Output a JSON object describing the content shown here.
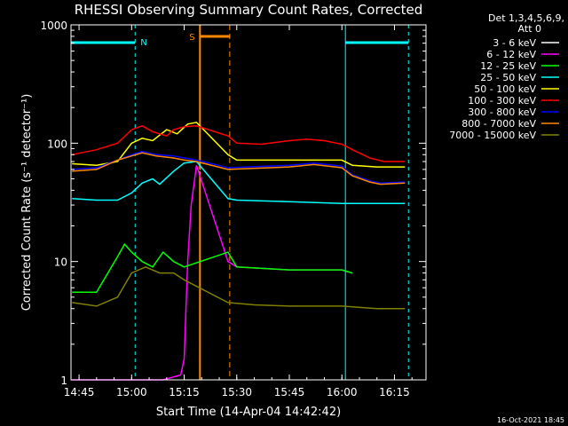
{
  "chart_data": {
    "type": "line",
    "title": "RHESSI Observing Summary Count Rates, Corrected",
    "xlabel": "Start Time (14-Apr-04 14:42:42)",
    "ylabel": "Corrected Count Rate (s⁻¹ detector⁻¹)",
    "yscale": "log",
    "ylim": [
      1,
      1000
    ],
    "xlim": [
      "14:42:42",
      "16:24"
    ],
    "x_ticks": [
      "14:45",
      "15:00",
      "15:15",
      "15:30",
      "15:45",
      "16:00",
      "16:15"
    ],
    "y_ticks": [
      "1",
      "10",
      "100",
      "1000"
    ],
    "legend_header": [
      "Det 1,3,4,5,6,9,",
      "Att 0"
    ],
    "legend_position": "right",
    "series": [
      {
        "name": "3 - 6 keV",
        "color": "#000000",
        "points": [
          [
            "15:19:00",
            60
          ],
          [
            "15:21:00",
            55
          ],
          [
            "15:27:30",
            58
          ],
          [
            "15:33:00",
            60
          ],
          [
            "15:45:00",
            62
          ],
          [
            "15:52:00",
            65
          ],
          [
            "16:00:00",
            62
          ],
          [
            "16:03:00",
            52
          ],
          [
            "16:08:00",
            47
          ],
          [
            "16:11:00",
            45
          ],
          [
            "16:18:00",
            46
          ]
        ]
      },
      {
        "name": "6 - 12 keV",
        "color": "#ff00ff",
        "points": [
          [
            "14:43:00",
            1
          ],
          [
            "15:09:00",
            1
          ],
          [
            "15:14:00",
            1.1
          ],
          [
            "15:15:00",
            1.5
          ],
          [
            "15:16:00",
            10
          ],
          [
            "15:17:00",
            30
          ],
          [
            "15:18:30",
            65
          ],
          [
            "15:27:30",
            10
          ],
          [
            "15:30:00",
            9
          ],
          [
            "15:45:00",
            8.5
          ],
          [
            "16:00:00",
            8.5
          ],
          [
            "16:03:00",
            8
          ]
        ]
      },
      {
        "name": "12 - 25 keV",
        "color": "#00ff00",
        "points": [
          [
            "14:43:00",
            5.5
          ],
          [
            "14:50:00",
            5.5
          ],
          [
            "14:56:00",
            11
          ],
          [
            "14:58:00",
            14
          ],
          [
            "15:00:00",
            12
          ],
          [
            "15:03:00",
            10
          ],
          [
            "15:06:00",
            9
          ],
          [
            "15:09:00",
            12
          ],
          [
            "15:12:00",
            10
          ],
          [
            "15:15:00",
            9
          ],
          [
            "15:27:30",
            12
          ],
          [
            "15:30:00",
            9
          ],
          [
            "15:45:00",
            8.5
          ],
          [
            "16:00:00",
            8.5
          ],
          [
            "16:03:00",
            8
          ]
        ]
      },
      {
        "name": "25 - 50 keV",
        "color": "#00ffff",
        "points": [
          [
            "14:43:00",
            34
          ],
          [
            "14:50:00",
            33
          ],
          [
            "14:56:00",
            33
          ],
          [
            "15:00:00",
            38
          ],
          [
            "15:03:00",
            46
          ],
          [
            "15:06:00",
            50
          ],
          [
            "15:08:00",
            45
          ],
          [
            "15:12:00",
            58
          ],
          [
            "15:15:00",
            68
          ],
          [
            "15:18:30",
            70
          ],
          [
            "15:27:30",
            34
          ],
          [
            "15:30:00",
            33
          ],
          [
            "15:45:00",
            32
          ],
          [
            "16:00:00",
            31
          ],
          [
            "16:10:00",
            31
          ],
          [
            "16:18:00",
            31
          ]
        ]
      },
      {
        "name": "50 - 100 keV",
        "color": "#ffff00",
        "points": [
          [
            "14:43:00",
            67
          ],
          [
            "14:50:00",
            65
          ],
          [
            "14:56:00",
            70
          ],
          [
            "15:00:00",
            100
          ],
          [
            "15:03:00",
            110
          ],
          [
            "15:06:00",
            105
          ],
          [
            "15:10:00",
            130
          ],
          [
            "15:13:00",
            120
          ],
          [
            "15:16:00",
            145
          ],
          [
            "15:18:30",
            150
          ],
          [
            "15:27:30",
            80
          ],
          [
            "15:30:00",
            72
          ],
          [
            "15:45:00",
            72
          ],
          [
            "16:00:00",
            72
          ],
          [
            "16:03:00",
            65
          ],
          [
            "16:10:00",
            63
          ],
          [
            "16:18:00",
            63
          ]
        ]
      },
      {
        "name": "100 - 300 keV",
        "color": "#ff0000",
        "points": [
          [
            "14:43:00",
            80
          ],
          [
            "14:50:00",
            88
          ],
          [
            "14:56:00",
            100
          ],
          [
            "15:00:00",
            130
          ],
          [
            "15:03:00",
            140
          ],
          [
            "15:06:00",
            125
          ],
          [
            "15:10:00",
            115
          ],
          [
            "15:12:00",
            130
          ],
          [
            "15:15:00",
            138
          ],
          [
            "15:18:30",
            140
          ],
          [
            "15:27:30",
            115
          ],
          [
            "15:30:00",
            100
          ],
          [
            "15:37:00",
            98
          ],
          [
            "15:45:00",
            105
          ],
          [
            "15:50:00",
            108
          ],
          [
            "15:55:00",
            105
          ],
          [
            "16:00:00",
            98
          ],
          [
            "16:03:00",
            88
          ],
          [
            "16:08:00",
            75
          ],
          [
            "16:12:00",
            70
          ],
          [
            "16:18:00",
            70
          ]
        ]
      },
      {
        "name": "300 - 800 keV",
        "color": "#0000ff",
        "points": [
          [
            "14:43:00",
            60
          ],
          [
            "14:50:00",
            62
          ],
          [
            "14:56:00",
            72
          ],
          [
            "15:00:00",
            80
          ],
          [
            "15:03:00",
            85
          ],
          [
            "15:07:00",
            80
          ],
          [
            "15:12:00",
            78
          ],
          [
            "15:15:00",
            75
          ],
          [
            "15:18:30",
            72
          ],
          [
            "15:27:30",
            62
          ],
          [
            "15:33:00",
            63
          ],
          [
            "15:45:00",
            65
          ],
          [
            "15:52:00",
            68
          ],
          [
            "16:00:00",
            64
          ],
          [
            "16:03:00",
            54
          ],
          [
            "16:08:00",
            48
          ],
          [
            "16:11:00",
            46
          ],
          [
            "16:18:00",
            47
          ]
        ]
      },
      {
        "name": "800 - 7000 keV",
        "color": "#ff8800",
        "points": [
          [
            "14:43:00",
            58
          ],
          [
            "14:50:00",
            60
          ],
          [
            "14:56:00",
            72
          ],
          [
            "15:00:00",
            78
          ],
          [
            "15:03:00",
            83
          ],
          [
            "15:07:00",
            78
          ],
          [
            "15:12:00",
            75
          ],
          [
            "15:15:00",
            72
          ],
          [
            "15:18:30",
            70
          ],
          [
            "15:27:30",
            60
          ],
          [
            "15:33:00",
            61
          ],
          [
            "15:45:00",
            63
          ],
          [
            "15:52:00",
            66
          ],
          [
            "16:00:00",
            62
          ],
          [
            "16:03:00",
            53
          ],
          [
            "16:08:00",
            47
          ],
          [
            "16:11:00",
            45
          ],
          [
            "16:18:00",
            46
          ]
        ]
      },
      {
        "name": "7000 - 15000 keV",
        "color": "#808000",
        "points": [
          [
            "14:43:00",
            4.5
          ],
          [
            "14:50:00",
            4.2
          ],
          [
            "14:56:00",
            5
          ],
          [
            "15:00:00",
            8
          ],
          [
            "15:04:00",
            9
          ],
          [
            "15:08:00",
            8
          ],
          [
            "15:12:00",
            8
          ],
          [
            "15:15:00",
            7
          ],
          [
            "15:27:30",
            4.5
          ],
          [
            "15:35:00",
            4.3
          ],
          [
            "15:45:00",
            4.2
          ],
          [
            "16:00:00",
            4.2
          ],
          [
            "16:10:00",
            4
          ],
          [
            "16:18:00",
            4
          ]
        ]
      }
    ],
    "annotations": {
      "night_label": "N",
      "saa_label": "S",
      "night_intervals": [
        [
          "14:42:42",
          "15:01:00"
        ],
        [
          "16:01:00",
          "16:19:00"
        ]
      ],
      "saa_interval": [
        "15:19:30",
        "15:28:00"
      ]
    },
    "grid": false
  },
  "footer_date": "16-Oct-2021 18:45",
  "colors": {
    "background": "#000000",
    "axes": "#ffffff",
    "night": "#00ffff",
    "saa": "#ff8800"
  }
}
